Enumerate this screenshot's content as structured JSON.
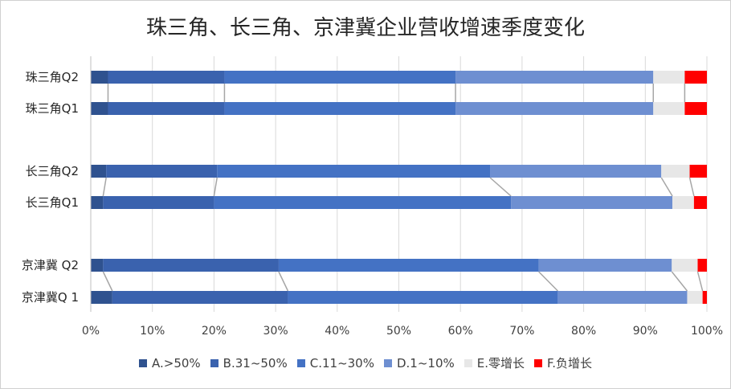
{
  "chart_data": {
    "type": "bar",
    "orientation": "horizontal",
    "stacked": "percent",
    "title": "珠三角、长三角、京津冀企业营收增速季度变化",
    "categories": [
      "珠三角Q2",
      "珠三角Q1",
      "长三角Q2",
      "长三角Q1",
      "京津冀 Q2",
      "京津冀Q 1"
    ],
    "groups": [
      [
        0,
        1
      ],
      [
        2,
        3
      ],
      [
        4,
        5
      ]
    ],
    "xlim": [
      0,
      100
    ],
    "xticks": [
      "0%",
      "10%",
      "20%",
      "30%",
      "40%",
      "50%",
      "60%",
      "70%",
      "80%",
      "90%",
      "100%"
    ],
    "series": [
      {
        "name": "A.>50%",
        "color": "#2F528F",
        "values": [
          2.8,
          2.8,
          2.5,
          2.0,
          2.0,
          3.5
        ]
      },
      {
        "name": "B.31~50%",
        "color": "#3A62AE",
        "values": [
          18.9,
          18.9,
          18.0,
          18.0,
          28.5,
          28.5
        ]
      },
      {
        "name": "C.11~30%",
        "color": "#4472C4",
        "values": [
          37.5,
          37.5,
          44.3,
          48.2,
          42.2,
          43.8
        ]
      },
      {
        "name": "D.1~10%",
        "color": "#6E8FD1",
        "values": [
          32.1,
          32.1,
          27.8,
          26.2,
          21.6,
          21.0
        ]
      },
      {
        "name": "E.零增长",
        "color": "#E7E7E7",
        "values": [
          5.1,
          5.1,
          4.6,
          3.5,
          4.2,
          2.5
        ]
      },
      {
        "name": "F.负增长",
        "color": "#FF0000",
        "values": [
          3.6,
          3.6,
          2.8,
          2.1,
          1.5,
          0.7
        ]
      }
    ],
    "series_lines": true,
    "legend": "bottom",
    "grid": true
  }
}
